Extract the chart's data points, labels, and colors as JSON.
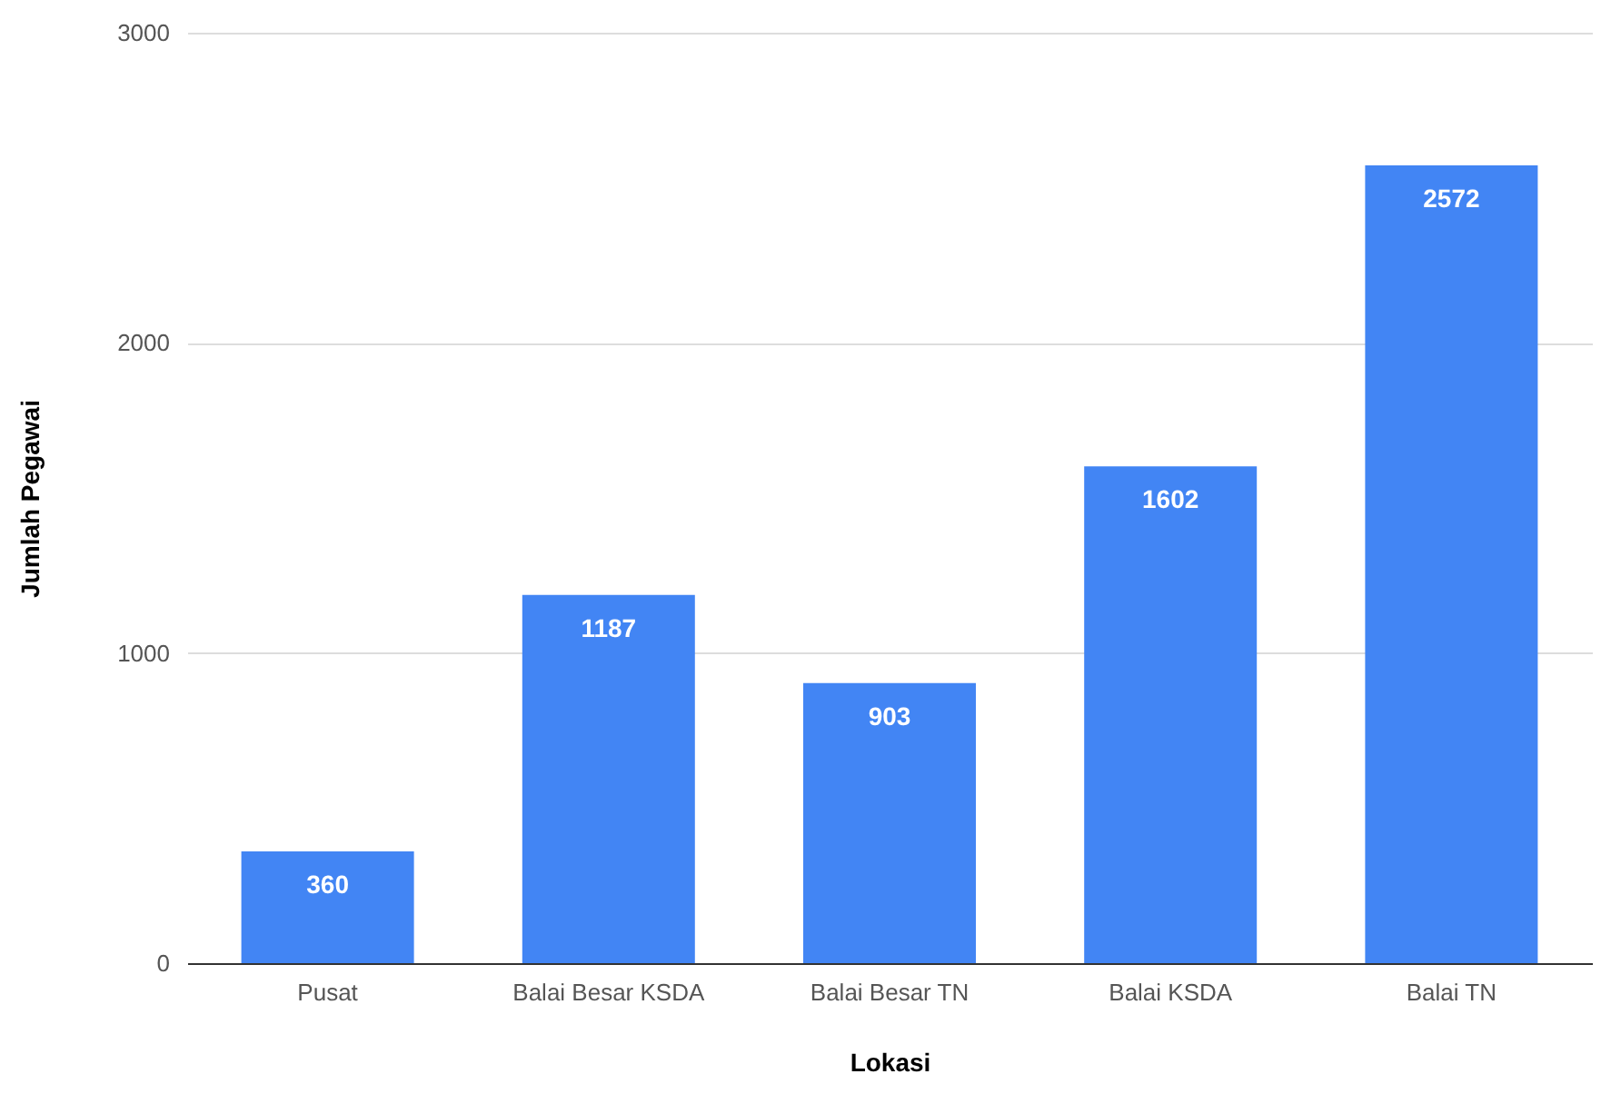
{
  "chart_data": {
    "type": "bar",
    "xlabel": "Lokasi",
    "ylabel": "Jumlah Pegawai",
    "categories": [
      "Pusat",
      "Balai Besar KSDA",
      "Balai Besar TN",
      "Balai KSDA",
      "Balai TN"
    ],
    "values": [
      360,
      1187,
      903,
      1602,
      2572
    ],
    "color": "#4285f4",
    "ylim": [
      0,
      3000
    ],
    "yticks": [
      0,
      1000,
      2000,
      3000
    ],
    "grid": "y",
    "data_labels": true
  }
}
